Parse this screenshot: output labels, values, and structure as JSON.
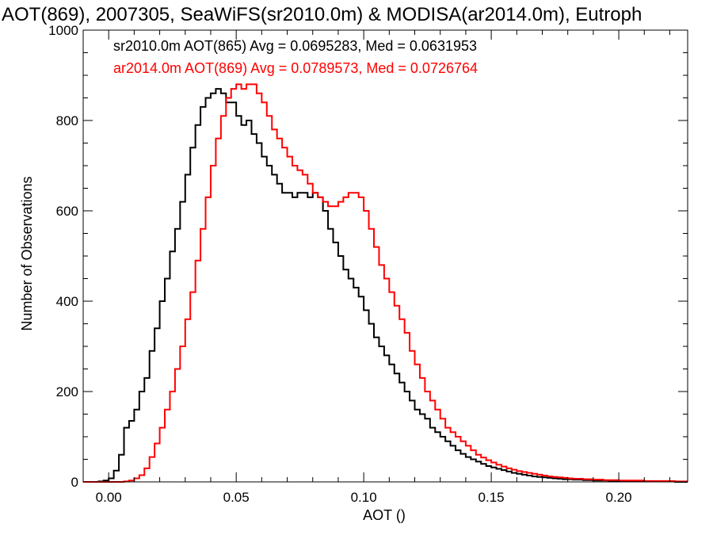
{
  "chart_data": {
    "type": "line",
    "title": "AOT(869), 2007305, SeaWiFS(sr2010.0m) & MODISA(ar2014.0m), Eutroph",
    "xlabel": "AOT ()",
    "ylabel": "Number of Observations",
    "xlim": [
      -0.01,
      0.227
    ],
    "ylim": [
      0,
      1000
    ],
    "x_ticks": [
      0.0,
      0.05,
      0.1,
      0.15,
      0.2
    ],
    "x_tick_labels": [
      "0.00",
      "0.05",
      "0.10",
      "0.15",
      "0.20"
    ],
    "y_ticks": [
      0,
      200,
      400,
      600,
      800,
      1000
    ],
    "y_tick_labels": [
      "0",
      "200",
      "400",
      "600",
      "800",
      "1000"
    ],
    "x": [
      -0.01,
      -0.008,
      -0.006,
      -0.004,
      -0.002,
      0.0,
      0.002,
      0.004,
      0.006,
      0.008,
      0.01,
      0.012,
      0.014,
      0.016,
      0.018,
      0.02,
      0.022,
      0.024,
      0.026,
      0.028,
      0.03,
      0.032,
      0.034,
      0.036,
      0.038,
      0.04,
      0.042,
      0.044,
      0.046,
      0.048,
      0.05,
      0.052,
      0.054,
      0.056,
      0.058,
      0.06,
      0.062,
      0.064,
      0.066,
      0.068,
      0.07,
      0.072,
      0.074,
      0.076,
      0.078,
      0.08,
      0.082,
      0.084,
      0.086,
      0.088,
      0.09,
      0.092,
      0.094,
      0.096,
      0.098,
      0.1,
      0.102,
      0.104,
      0.106,
      0.108,
      0.11,
      0.112,
      0.114,
      0.116,
      0.118,
      0.12,
      0.122,
      0.124,
      0.126,
      0.128,
      0.13,
      0.132,
      0.134,
      0.136,
      0.138,
      0.14,
      0.142,
      0.144,
      0.146,
      0.148,
      0.15,
      0.152,
      0.154,
      0.156,
      0.158,
      0.16,
      0.162,
      0.164,
      0.166,
      0.168,
      0.17,
      0.172,
      0.174,
      0.176,
      0.178,
      0.18,
      0.182,
      0.184,
      0.186,
      0.188,
      0.19,
      0.192,
      0.194,
      0.196,
      0.198,
      0.2,
      0.202,
      0.204,
      0.206,
      0.208,
      0.21,
      0.212,
      0.214,
      0.216,
      0.218,
      0.22,
      0.222,
      0.224,
      0.226
    ],
    "series": [
      {
        "name": "sr2010.0m AOT(865) Avg = 0.0695283, Med = 0.0631953",
        "color": "#000000",
        "values": [
          0,
          0,
          0,
          1,
          3,
          8,
          25,
          60,
          120,
          135,
          160,
          200,
          230,
          290,
          340,
          400,
          450,
          510,
          560,
          620,
          680,
          740,
          790,
          830,
          850,
          860,
          870,
          860,
          840,
          840,
          810,
          790,
          800,
          770,
          750,
          720,
          700,
          680,
          660,
          640,
          640,
          630,
          640,
          640,
          630,
          640,
          630,
          600,
          560,
          530,
          500,
          470,
          450,
          430,
          410,
          380,
          350,
          320,
          300,
          280,
          260,
          240,
          220,
          200,
          180,
          160,
          150,
          140,
          120,
          110,
          100,
          90,
          80,
          70,
          62,
          55,
          50,
          45,
          40,
          35,
          32,
          29,
          26,
          23,
          20,
          18,
          16,
          14,
          12,
          11,
          10,
          9,
          8,
          7,
          6,
          6,
          5,
          5,
          4,
          4,
          3,
          3,
          3,
          2,
          2,
          2,
          2,
          1,
          1,
          1,
          1,
          1,
          1,
          1,
          1,
          1,
          0,
          0,
          0
        ]
      },
      {
        "name": "ar2014.0m AOT(869) Avg = 0.0789573, Med = 0.0726764",
        "color": "#ff0000",
        "values": [
          0,
          0,
          0,
          0,
          0,
          0,
          0,
          0,
          1,
          3,
          8,
          15,
          30,
          55,
          85,
          120,
          160,
          200,
          250,
          300,
          360,
          420,
          490,
          560,
          630,
          700,
          760,
          810,
          850,
          870,
          880,
          870,
          880,
          880,
          860,
          840,
          810,
          780,
          760,
          740,
          720,
          700,
          690,
          680,
          660,
          640,
          630,
          620,
          610,
          610,
          620,
          630,
          640,
          640,
          630,
          600,
          560,
          520,
          480,
          450,
          420,
          390,
          360,
          330,
          290,
          260,
          230,
          200,
          180,
          160,
          140,
          120,
          110,
          100,
          90,
          80,
          70,
          60,
          54,
          48,
          43,
          38,
          34,
          30,
          27,
          24,
          22,
          20,
          18,
          16,
          14,
          12,
          11,
          10,
          9,
          8,
          7,
          7,
          6,
          6,
          5,
          5,
          4,
          4,
          4,
          3,
          3,
          3,
          3,
          3,
          2,
          2,
          2,
          2,
          2,
          2,
          1,
          1,
          1
        ]
      }
    ]
  }
}
